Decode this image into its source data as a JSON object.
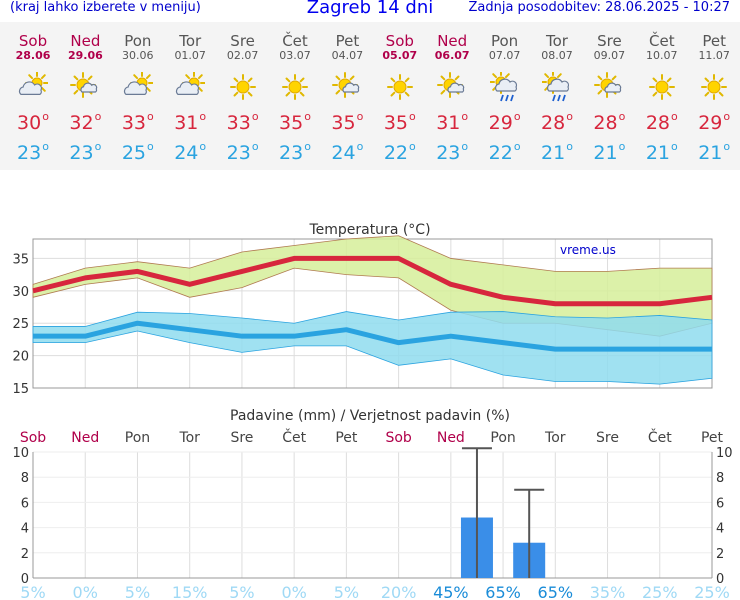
{
  "header": {
    "left_note": "(kraj lahko izberete v meniju)",
    "title": "Zagreb 14 dni",
    "updated": "Zadnja posodobitev: 28.06.2025 - 10:27"
  },
  "colors": {
    "max_temp": "#d7263d",
    "min_temp": "#2aa3e0",
    "weekend": "#b0004a",
    "precip_bar": "#3a8ee8",
    "prob_high": "#1a8cd8",
    "prob_low": "#9fd9f5"
  },
  "days": [
    {
      "name": "Sob",
      "date": "28.06",
      "weekend": true,
      "icon": "sun-cloud-icon",
      "max": "30",
      "min": "23"
    },
    {
      "name": "Ned",
      "date": "29.06",
      "weekend": true,
      "icon": "sun-small-cloud-icon",
      "max": "32",
      "min": "23"
    },
    {
      "name": "Pon",
      "date": "30.06",
      "weekend": false,
      "icon": "sun-cloud-icon",
      "max": "33",
      "min": "25"
    },
    {
      "name": "Tor",
      "date": "01.07",
      "weekend": false,
      "icon": "sun-cloud-icon",
      "max": "31",
      "min": "24"
    },
    {
      "name": "Sre",
      "date": "02.07",
      "weekend": false,
      "icon": "sun-icon",
      "max": "33",
      "min": "23"
    },
    {
      "name": "Čet",
      "date": "03.07",
      "weekend": false,
      "icon": "sun-icon",
      "max": "35",
      "min": "23"
    },
    {
      "name": "Pet",
      "date": "04.07",
      "weekend": false,
      "icon": "sun-small-cloud-icon",
      "max": "35",
      "min": "24"
    },
    {
      "name": "Sob",
      "date": "05.07",
      "weekend": true,
      "icon": "sun-icon",
      "max": "35",
      "min": "22"
    },
    {
      "name": "Ned",
      "date": "06.07",
      "weekend": true,
      "icon": "sun-small-cloud-icon",
      "max": "31",
      "min": "23"
    },
    {
      "name": "Pon",
      "date": "07.07",
      "weekend": false,
      "icon": "sun-cloud-rain-icon",
      "max": "29",
      "min": "22"
    },
    {
      "name": "Tor",
      "date": "08.07",
      "weekend": false,
      "icon": "sun-cloud-rain-icon",
      "max": "28",
      "min": "21"
    },
    {
      "name": "Sre",
      "date": "09.07",
      "weekend": false,
      "icon": "sun-small-cloud-icon",
      "max": "28",
      "min": "21"
    },
    {
      "name": "Čet",
      "date": "10.07",
      "weekend": false,
      "icon": "sun-icon",
      "max": "28",
      "min": "21"
    },
    {
      "name": "Pet",
      "date": "11.07",
      "weekend": false,
      "icon": "sun-icon",
      "max": "29",
      "min": "21"
    }
  ],
  "chart_data": [
    {
      "type": "line",
      "title": "Temperatura (°C)",
      "watermark": "vreme.us",
      "x": [
        "Sob",
        "Ned",
        "Pon",
        "Tor",
        "Sre",
        "Čet",
        "Pet",
        "Sob",
        "Ned",
        "Pon",
        "Tor",
        "Sre",
        "Čet",
        "Pet"
      ],
      "ylim": [
        15,
        38
      ],
      "yticks": [
        15,
        20,
        25,
        30,
        35
      ],
      "grid": true,
      "series": [
        {
          "values": [
            30,
            32,
            33,
            31,
            33,
            35,
            35,
            35,
            31,
            29,
            28,
            28,
            28,
            29
          ]
        },
        {
          "values": [
            23,
            23,
            25,
            24,
            23,
            23,
            24,
            22,
            23,
            22,
            21,
            21,
            21,
            21
          ]
        }
      ],
      "max_range": {
        "upper": [
          31,
          33.5,
          34.5,
          33.5,
          36,
          37,
          38,
          38.5,
          35,
          34,
          33,
          33,
          33.5,
          33.5
        ],
        "lower": [
          29,
          31,
          32,
          29,
          30.5,
          33.5,
          32.5,
          32,
          27,
          25,
          25,
          24,
          23,
          25
        ]
      },
      "min_range": {
        "upper": [
          24.5,
          24.5,
          26.7,
          26.5,
          25.8,
          25,
          26.8,
          25.5,
          26.7,
          26.8,
          26,
          25.8,
          26.2,
          25.5
        ],
        "lower": [
          22,
          22,
          23.8,
          22,
          20.5,
          21.5,
          21.5,
          18.5,
          19.5,
          17,
          16,
          16,
          15.6,
          16.5
        ]
      }
    },
    {
      "type": "bar",
      "title": "Padavine (mm) / Verjetnost padavin (%)",
      "categories": [
        "Sob",
        "Ned",
        "Pon",
        "Tor",
        "Sre",
        "Čet",
        "Pet",
        "Sob",
        "Ned",
        "Pon",
        "Tor",
        "Sre",
        "Čet",
        "Pet"
      ],
      "weekend": [
        true,
        true,
        false,
        false,
        false,
        false,
        false,
        true,
        true,
        false,
        false,
        false,
        false,
        false
      ],
      "ylim": [
        0,
        10
      ],
      "yticks": [
        0,
        2,
        4,
        6,
        8,
        10
      ],
      "values": [
        0,
        0,
        0,
        0,
        0,
        0,
        0,
        0,
        0,
        4.8,
        2.8,
        0,
        0,
        0
      ],
      "error_high": [
        0,
        0,
        0,
        0,
        0,
        0,
        0,
        0,
        0,
        10.3,
        7,
        0,
        0,
        0
      ],
      "probability": [
        "5%",
        "0%",
        "5%",
        "15%",
        "5%",
        "0%",
        "5%",
        "20%",
        "45%",
        "65%",
        "65%",
        "35%",
        "25%",
        "25%"
      ],
      "probability_values": [
        5,
        0,
        5,
        15,
        5,
        0,
        5,
        20,
        45,
        65,
        65,
        35,
        25,
        25
      ]
    }
  ]
}
